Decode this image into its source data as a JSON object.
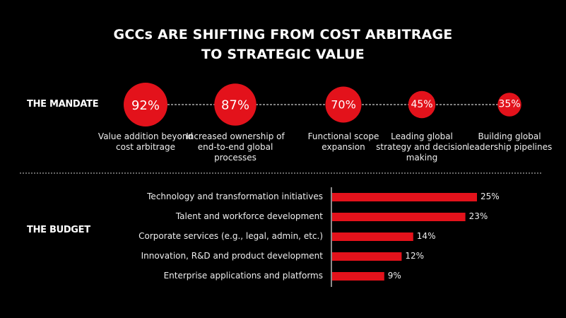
{
  "title_line1": "GCCs ARE SHIFTING FROM COST ARBITRAGE",
  "title_line2": "TO STRATEGIC VALUE",
  "colors": {
    "accent": "#e3121b",
    "background": "#000000",
    "text": "#ffffff"
  },
  "chart_data": [
    {
      "type": "bubble",
      "section_label": "THE MANDATE",
      "categories": [
        "Value addition beyond cost arbitrage",
        "Increased ownership of end-to-end global processes",
        "Functional scope expansion",
        "Leading global strategy and decision making",
        "Building global leadership pipelines"
      ],
      "values": [
        92,
        87,
        70,
        45,
        35
      ],
      "value_labels": [
        "92%",
        "87%",
        "70%",
        "45%",
        "35%"
      ]
    },
    {
      "type": "bar",
      "orientation": "horizontal",
      "section_label": "THE BUDGET",
      "categories": [
        "Technology and transformation initiatives",
        "Talent and workforce development",
        "Corporate services (e.g., legal, admin, etc.)",
        "Innovation, R&D and product development",
        "Enterprise applications and platforms"
      ],
      "values": [
        25,
        23,
        14,
        12,
        9
      ],
      "value_labels": [
        "25%",
        "23%",
        "14%",
        "12%",
        "9%"
      ]
    }
  ]
}
